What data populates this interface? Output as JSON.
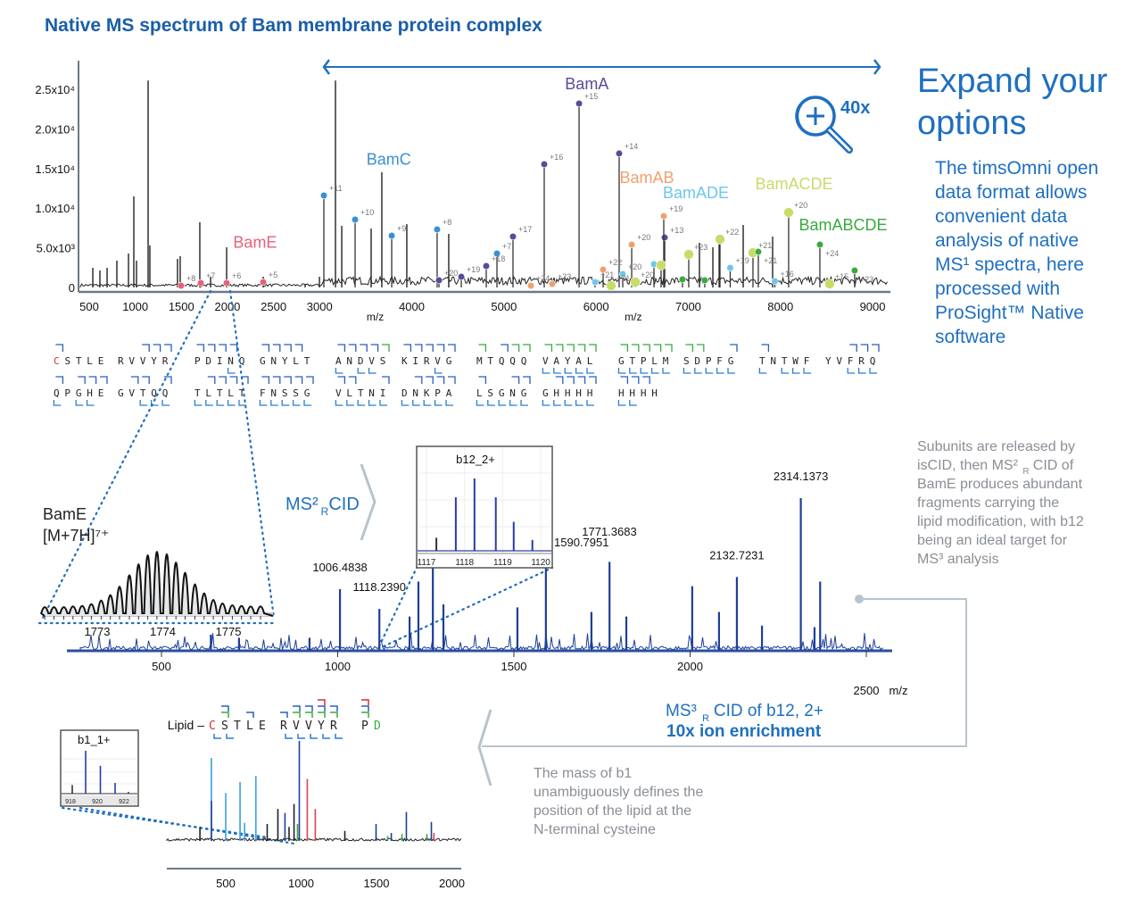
{
  "title": "Native MS spectrum of Bam membrane protein complex",
  "headline": [
    "Expand your",
    "options"
  ],
  "intro_lines": [
    "The timsOmni open",
    "data format allows",
    "convenient data",
    "analysis of native",
    "MS¹ spectra, here",
    "processed with",
    "ProSight™ Native",
    "software"
  ],
  "zoom_badge": {
    "icon": "zoom-in-magnifier-icon",
    "label": "40x"
  },
  "ms2_label": {
    "main": "MS²",
    "sub": "R",
    "rest": "CID"
  },
  "ms2_note_lines": [
    "Subunits are released by",
    "isCID, then MS²  CID of",
    "BamE produces abundant",
    "fragments carrying the",
    "lipid modification, with b12",
    "being an ideal target for",
    "MS³ analysis"
  ],
  "ms3_label": {
    "line1": "MS³  CID of b12, 2+",
    "sub": "R",
    "line2": "10x ion enrichment"
  },
  "b1_note_lines": [
    "The mass of b1",
    "unambiguously defines the",
    "position of the lipid at the",
    "N-terminal cysteine"
  ],
  "colors": {
    "brand": "#1f6fc0",
    "title": "#1a5ea8",
    "BamE": "#e8607a",
    "BamC": "#3b8fd4",
    "BamA": "#5b4a9a",
    "BamAB": "#f0a070",
    "BamADE": "#6cc8e8",
    "BamACDE": "#c8dc6a",
    "BamABCDE": "#3aaa40",
    "ms2_trace": "#1e3f9a",
    "grey": "#8a8f96"
  },
  "sequence": {
    "rows": [
      [
        {
          "res": "CSTLE",
          "b": "10000",
          "y": "00000"
        },
        {
          "res": "RVVYR",
          "b": "00111",
          "y": "00000"
        },
        {
          "res": "PDINQ",
          "b": "11110",
          "y": "00010"
        },
        {
          "res": "GNYLT",
          "b": "11110",
          "y": "00000"
        },
        {
          "res": "ANDVS",
          "b": "11112",
          "y": "10110"
        },
        {
          "res": "KIRVG",
          "b": "11111",
          "y": "00010"
        },
        {
          "res": "MTQQQ",
          "b": "20122",
          "y": "00000"
        },
        {
          "res": "VAYAL",
          "b": "22222",
          "y": "11111"
        },
        {
          "res": "GTPLM",
          "b": "22222",
          "y": "11111"
        },
        {
          "res": "SDPFG",
          "b": "22001",
          "y": "11111"
        },
        {
          "res": "TNTWF",
          "b": "10000",
          "y": "10111"
        },
        {
          "res": "YVFRQ",
          "b": "00111",
          "y": "00111"
        }
      ],
      [
        {
          "res": "QPGHE",
          "b": "10111",
          "y": "10110"
        },
        {
          "res": "GVTQQ",
          "b": "01101",
          "y": "00111"
        },
        {
          "res": "TLTLT",
          "b": "01111",
          "y": "11111"
        },
        {
          "res": "FNSSG",
          "b": "11111",
          "y": "11111"
        },
        {
          "res": "VLTNI",
          "b": "11001",
          "y": "11111"
        },
        {
          "res": "DNKPA",
          "b": "01111",
          "y": "11111"
        },
        {
          "res": "LSGNG",
          "b": "10011",
          "y": "11111"
        },
        {
          "res": "GHHHH",
          "b": "01111",
          "y": "11111"
        },
        {
          "res": "HHHH",
          "b": "1110",
          "y": "1100"
        }
      ]
    ],
    "first_residue_color": "#d03030"
  },
  "lipid_sequence": {
    "prefix": "Lipid –",
    "residues": [
      {
        "r": "C",
        "color": "#d03030",
        "top": "",
        "bot": "b"
      },
      {
        "r": "S",
        "color": "#222",
        "top": "bg",
        "bot": "b"
      },
      {
        "r": "T",
        "color": "#222",
        "top": "",
        "bot": ""
      },
      {
        "r": "L",
        "color": "#222",
        "top": "b",
        "bot": ""
      },
      {
        "r": "E",
        "color": "#222",
        "top": "",
        "bot": ""
      },
      {
        "r": "R",
        "color": "#222",
        "top": "b",
        "bot": "b"
      },
      {
        "r": "V",
        "color": "#222",
        "top": "bg",
        "bot": "b"
      },
      {
        "r": "V",
        "color": "#222",
        "top": "bg",
        "bot": "b"
      },
      {
        "r": "Y",
        "color": "#222",
        "top": "rbg",
        "bot": "b"
      },
      {
        "r": "R",
        "color": "#222",
        "top": "bg",
        "bot": "b"
      },
      {
        "r": "P",
        "color": "#222",
        "top": "rbg",
        "bot": ""
      },
      {
        "r": "D",
        "color": "#3aaa40",
        "top": "",
        "bot": ""
      }
    ]
  },
  "chart_data": [
    {
      "id": "ms1",
      "type": "line",
      "xlabel": "m/z",
      "xlim": [
        500,
        9000
      ],
      "ylim": [
        0,
        25000
      ],
      "xticks": [
        500,
        1000,
        1500,
        2000,
        2500,
        3000,
        4000,
        5000,
        6000,
        7000,
        8000,
        9000
      ],
      "xtick_labels_extra": [
        {
          "value": 3700,
          "label": "m/z"
        },
        {
          "value": 6500,
          "label": "m/z"
        }
      ],
      "yticks": [
        {
          "v": 0,
          "label": "0"
        },
        {
          "v": 5000,
          "label": "5.0x10³"
        },
        {
          "v": 10000,
          "label": "1.0x10⁴"
        },
        {
          "v": 15000,
          "label": "1.5x10⁴"
        },
        {
          "v": 20000,
          "label": "2.0x10⁴"
        },
        {
          "v": 25000,
          "label": "2.5x10⁴"
        }
      ],
      "expand_range": [
        3172,
        9000
      ],
      "peaks": [
        [
          539,
          2480
        ],
        [
          616,
          2140
        ],
        [
          694,
          2480
        ],
        [
          800,
          3380
        ],
        [
          926,
          4280
        ],
        [
          984,
          11490
        ],
        [
          1013,
          3380
        ],
        [
          1139,
          26100
        ],
        [
          1158,
          5300
        ],
        [
          1458,
          3600
        ],
        [
          1487,
          3940
        ],
        [
          1700,
          8220
        ],
        [
          1817,
          1350
        ],
        [
          1991,
          5070
        ],
        [
          2388,
          1350
        ],
        [
          2843,
          450
        ],
        [
          2998,
          1350
        ],
        [
          3172,
          26100
        ],
        [
          3240,
          7770
        ],
        [
          3559,
          7430
        ],
        [
          3675,
          14530
        ],
        [
          3946,
          7990
        ],
        [
          4401,
          6760
        ],
        [
          7121,
          5630
        ],
        [
          7267,
          5070
        ],
        [
          7335,
          5860
        ],
        [
          7596,
          7880
        ],
        [
          7915,
          6420
        ]
      ],
      "series": [
        {
          "name": "BamE",
          "color": "#e8607a",
          "label_at": [
            2300,
            5000
          ],
          "points": [
            [
              1497,
              225,
              "+8"
            ],
            [
              1710,
              560,
              "+7"
            ],
            [
              1991,
              560,
              "+6"
            ],
            [
              2388,
              670,
              "+5"
            ]
          ]
        },
        {
          "name": "BamC",
          "color": "#3b8fd4",
          "label_at": [
            3750,
            15500
          ],
          "points": [
            [
              3046,
              11600,
              "+11"
            ],
            [
              3385,
              8560,
              "+10"
            ],
            [
              3782,
              6530,
              "+9"
            ],
            [
              4275,
              7320,
              "+8"
            ],
            [
              4924,
              4280,
              "+7"
            ]
          ]
        },
        {
          "name": "BamA",
          "color": "#5b4a9a",
          "label_at": [
            5900,
            25000
          ],
          "points": [
            [
              4295,
              900,
              "+20"
            ],
            [
              4537,
              1350,
              "+19"
            ],
            [
              4808,
              2700,
              "+18"
            ],
            [
              5098,
              6420,
              "+17"
            ],
            [
              5437,
              15540,
              "+16"
            ],
            [
              5815,
              23200,
              "+15"
            ],
            [
              6250,
              16900,
              "+14"
            ],
            [
              6744,
              6300,
              "+13"
            ]
          ]
        },
        {
          "name": "BamAB",
          "color": "#f0a070",
          "label_at": [
            6550,
            11500
          ],
          "points": [
            [
              5292,
              225,
              "+24"
            ],
            [
              5524,
              450,
              "+23"
            ],
            [
              6076,
              2250,
              "+22"
            ],
            [
              6386,
              5400,
              "+20"
            ],
            [
              6734,
              9000,
              "+19"
            ]
          ]
        },
        {
          "name": "BamADE",
          "color": "#6cc8e8",
          "label_at": [
            6650,
            9000
          ],
          "points": [
            [
              5989,
              680,
              "+21"
            ],
            [
              6289,
              1690,
              "+20"
            ],
            [
              6628,
              2930,
              ""
            ],
            [
              7455,
              2480,
              "+19"
            ],
            [
              7939,
              790,
              "+16"
            ]
          ]
        },
        {
          "name": "BamACDE",
          "color": "#c8dc6a",
          "label_at": [
            7100,
            9300
          ],
          "points": [
            [
              6163,
              225,
              "+21"
            ],
            [
              6425,
              680,
              "+20"
            ],
            [
              6705,
              2820,
              ""
            ],
            [
              7005,
              4170,
              "+23"
            ],
            [
              7344,
              6080,
              "+22"
            ],
            [
              7702,
              4390,
              "+21"
            ],
            [
              8089,
              9460,
              "+20"
            ],
            [
              8534,
              450,
              "+15"
            ]
          ]
        },
        {
          "name": "BamABCDE",
          "color": "#3aaa40",
          "label_at": [
            7650,
            4200
          ],
          "points": [
            [
              6937,
              1010,
              ""
            ],
            [
              7179,
              900,
              ""
            ],
            [
              7760,
              4500,
              "+21"
            ],
            [
              8428,
              5400,
              "+24"
            ],
            [
              8805,
              2140,
              "+23"
            ]
          ]
        }
      ]
    },
    {
      "id": "bamE_isotopes",
      "type": "line",
      "title": "BamE",
      "subtitle": "[M+7H]⁷⁺",
      "xlim": [
        1772.1,
        1775.6
      ],
      "xticks": [
        1773,
        1774,
        1775
      ],
      "peaks": [
        [
          1772.2,
          0.08
        ],
        [
          1772.34,
          0.08
        ],
        [
          1772.49,
          0.08
        ],
        [
          1772.63,
          0.09
        ],
        [
          1772.77,
          0.1
        ],
        [
          1772.91,
          0.13
        ],
        [
          1773.06,
          0.19
        ],
        [
          1773.2,
          0.28
        ],
        [
          1773.34,
          0.42
        ],
        [
          1773.49,
          0.61
        ],
        [
          1773.63,
          0.79
        ],
        [
          1773.77,
          0.94
        ],
        [
          1773.91,
          1.0
        ],
        [
          1774.06,
          0.96
        ],
        [
          1774.2,
          0.82
        ],
        [
          1774.34,
          0.65
        ],
        [
          1774.49,
          0.46
        ],
        [
          1774.63,
          0.31
        ],
        [
          1774.77,
          0.2
        ],
        [
          1774.91,
          0.14
        ],
        [
          1775.06,
          0.11
        ],
        [
          1775.2,
          0.1
        ],
        [
          1775.34,
          0.09
        ],
        [
          1775.49,
          0.09
        ]
      ]
    },
    {
      "id": "ms2",
      "type": "line",
      "xlabel": "m/z",
      "xlim": [
        240,
        2560
      ],
      "xticks": [
        500,
        1000,
        1500,
        2000,
        2500
      ],
      "peaks": [
        [
          640,
          10
        ],
        [
          720,
          8
        ],
        [
          920,
          8
        ],
        [
          1006.4838,
          40,
          "1006.4838"
        ],
        [
          1118.239,
          27,
          "1118.2390"
        ],
        [
          1204,
          22
        ],
        [
          1229,
          45
        ],
        [
          1270,
          75
        ],
        [
          1300,
          30
        ],
        [
          1510,
          28
        ],
        [
          1590.7951,
          72,
          "1590.7951"
        ],
        [
          1720,
          25
        ],
        [
          1771.3683,
          58,
          "1771.3683"
        ],
        [
          1819,
          22
        ],
        [
          2006,
          42
        ],
        [
          2082,
          25
        ],
        [
          2132.7231,
          48,
          "2132.7231"
        ],
        [
          2204,
          16
        ],
        [
          2314.1373,
          100,
          "2314.1373"
        ],
        [
          2353,
          15
        ],
        [
          2369,
          45
        ]
      ]
    },
    {
      "id": "b12_inset",
      "type": "line",
      "title": "b12_2+",
      "xlim": [
        1116.8,
        1120.3
      ],
      "xticks": [
        1117,
        1118,
        1119,
        1120
      ],
      "peaks": [
        [
          1117.26,
          0.18,
          "other"
        ],
        [
          1117.77,
          0.74
        ],
        [
          1118.26,
          1.0
        ],
        [
          1118.82,
          0.74
        ],
        [
          1119.29,
          0.4
        ],
        [
          1119.78,
          0.15
        ]
      ]
    },
    {
      "id": "ms3",
      "type": "line",
      "xlim": [
        200,
        2060
      ],
      "xticks": [
        500,
        1000,
        1500,
        2000
      ],
      "peaks": [
        [
          329,
          14,
          "#222"
        ],
        [
          405,
          83,
          "#3aa0e0"
        ],
        [
          405,
          40,
          "#1e3f9a"
        ],
        [
          500,
          48,
          "#3aa0e0"
        ],
        [
          595,
          59,
          "#3aa0e0"
        ],
        [
          625,
          18,
          "#3aa0e0"
        ],
        [
          700,
          65,
          "#3aa0e0"
        ],
        [
          775,
          17,
          "#222"
        ],
        [
          846,
          32,
          "#222"
        ],
        [
          893,
          28,
          "#1e3f9a"
        ],
        [
          920,
          14,
          "#222"
        ],
        [
          953,
          37,
          "#222"
        ],
        [
          976,
          17,
          "#3aaa40"
        ],
        [
          988,
          100,
          "#1e3f9a"
        ],
        [
          1041,
          62,
          "#e04050"
        ],
        [
          1094,
          32,
          "#e04050"
        ],
        [
          1290,
          10,
          "#222"
        ],
        [
          1497,
          17,
          "#1e3f9a"
        ],
        [
          1574,
          5,
          "#3aaa40"
        ],
        [
          1598,
          8,
          "#1e3f9a"
        ],
        [
          1669,
          7,
          "#3aaa40"
        ],
        [
          1698,
          29,
          "#1e3f9a"
        ],
        [
          1834,
          7,
          "#3aaa40"
        ],
        [
          1864,
          19,
          "#1e3f9a"
        ],
        [
          1881,
          8,
          "#e04050"
        ]
      ]
    },
    {
      "id": "b1_inset",
      "type": "line",
      "title": "b1_1+",
      "xlim": [
        917.6,
        923.4
      ],
      "xticks": [
        918,
        920,
        922
      ],
      "peaks": [
        [
          918.4,
          0.2,
          "other"
        ],
        [
          919.4,
          1.0
        ],
        [
          920.5,
          0.65
        ],
        [
          921.6,
          0.25
        ],
        [
          922.6,
          0.04
        ]
      ]
    }
  ]
}
